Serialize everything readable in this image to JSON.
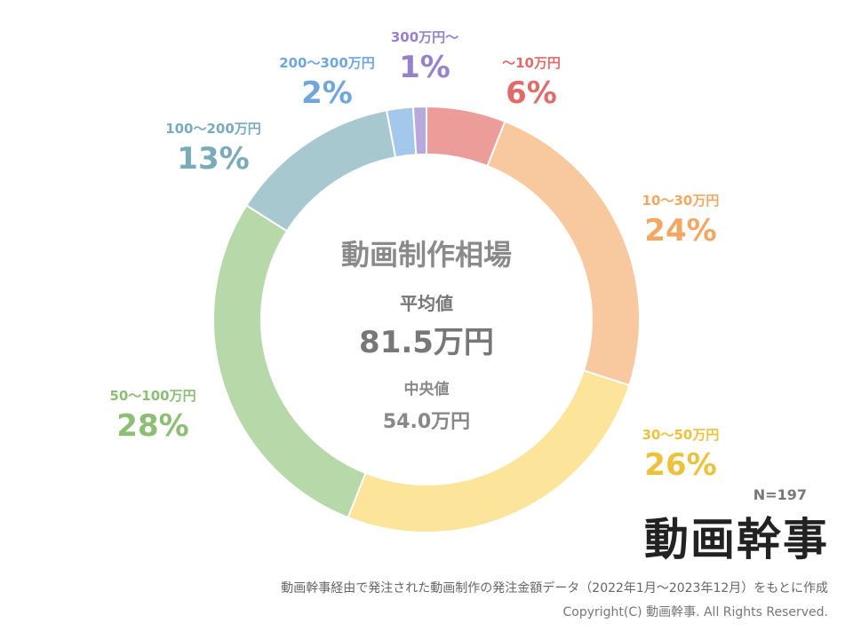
{
  "chart_data": {
    "type": "pie",
    "subtype": "donut",
    "title": "動画制作相場",
    "sample_size": "N=197",
    "slices": [
      {
        "label": "〜10万円",
        "percent_label": "6%",
        "value": 6,
        "color": "#ec9c99",
        "label_color": "#e06c6a"
      },
      {
        "label": "10〜30万円",
        "percent_label": "24%",
        "value": 24,
        "color": "#f8c89e",
        "label_color": "#f2a862"
      },
      {
        "label": "30〜50万円",
        "percent_label": "26%",
        "value": 26,
        "color": "#fde49b",
        "label_color": "#eec13d"
      },
      {
        "label": "50〜100万円",
        "percent_label": "28%",
        "value": 28,
        "color": "#b7d8a8",
        "label_color": "#8cbf74"
      },
      {
        "label": "100〜200万円",
        "percent_label": "13%",
        "value": 13,
        "color": "#a8c8d0",
        "label_color": "#7aabba"
      },
      {
        "label": "200〜300万円",
        "percent_label": "2%",
        "value": 2,
        "color": "#a4c8ec",
        "label_color": "#6fa6de"
      },
      {
        "label": "300万円〜",
        "percent_label": "1%",
        "value": 1,
        "color": "#b8a8dc",
        "label_color": "#9682cc"
      }
    ],
    "center": {
      "title": "動画制作相場",
      "average_label": "平均値",
      "average_value": "81.5万円",
      "median_label": "中央値",
      "median_value": "54.0万円"
    }
  },
  "brand": {
    "logo_text": "動画幹事"
  },
  "footer": {
    "source_note": "動画幹事経由で発注された動画制作の発注金額データ（2022年1月〜2023年12月）をもとに作成",
    "copyright": "Copyright(C) 動画幹事. All Rights Reserved."
  }
}
